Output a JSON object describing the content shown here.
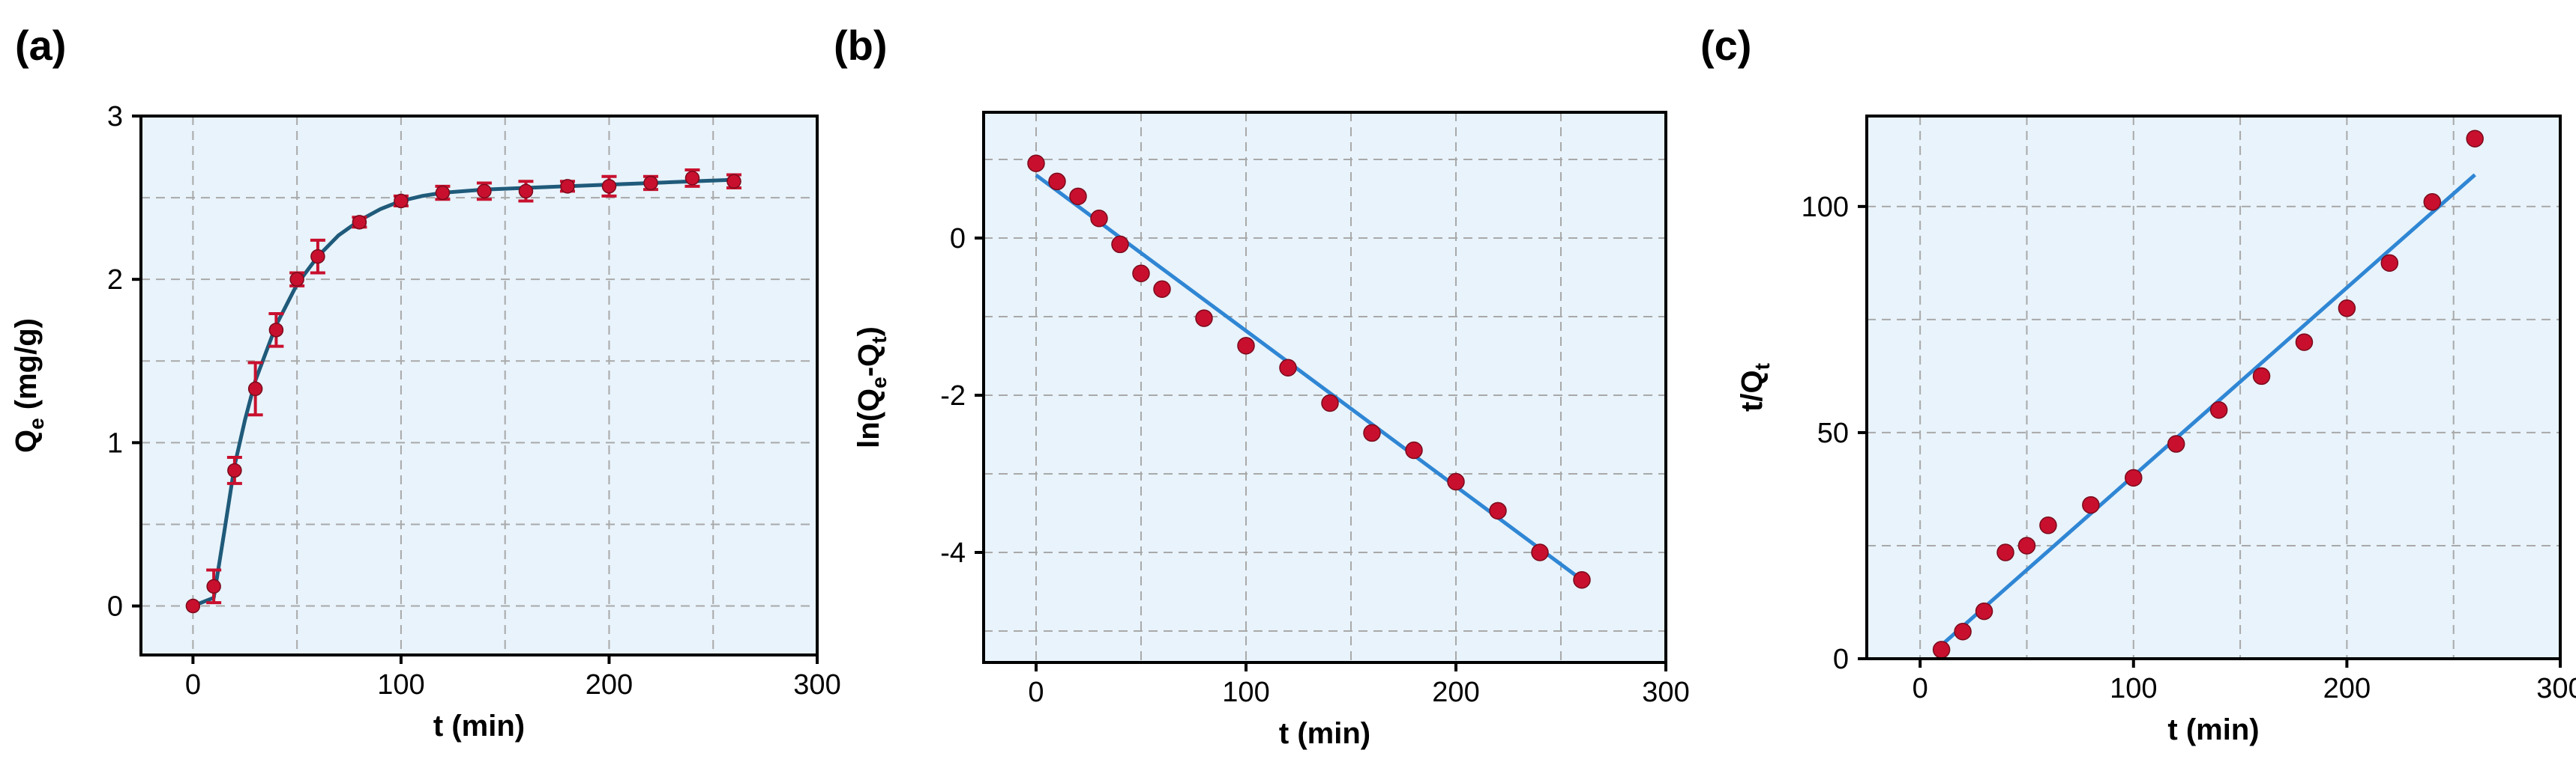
{
  "colors": {
    "panel_bg": "#e8f3fb",
    "frame": "#000000",
    "grid": "#a9a9a9",
    "marker": "#c8102e",
    "errorbar": "#c8102e",
    "curve": "#1f5a7a",
    "fit": "#2f86d4"
  },
  "chart_data": [
    {
      "panel_label": "(a)",
      "type": "scatter",
      "xlabel": "t (min)",
      "ylabel": "Q",
      "ylabel_sub": "e",
      "ylabel_tail": " (mg/g)",
      "xlim": [
        -25,
        300
      ],
      "ylim": [
        -0.3,
        3
      ],
      "xticks": [
        0,
        100,
        200,
        300
      ],
      "yticks": [
        0,
        1,
        2,
        3
      ],
      "grid": true,
      "series": [
        {
          "kind": "points",
          "x": [
            0,
            10,
            20,
            30,
            40,
            50,
            60,
            80,
            100,
            120,
            140,
            160,
            180,
            200,
            220,
            240,
            260
          ],
          "y": [
            0,
            0.12,
            0.83,
            1.33,
            1.69,
            2.0,
            2.14,
            2.35,
            2.48,
            2.53,
            2.54,
            2.54,
            2.57,
            2.57,
            2.59,
            2.62,
            2.6
          ],
          "err": [
            0,
            0.1,
            0.08,
            0.16,
            0.1,
            0.04,
            0.1,
            0.03,
            0.03,
            0.04,
            0.05,
            0.06,
            0.03,
            0.06,
            0.04,
            0.05,
            0.04
          ]
        },
        {
          "kind": "curve",
          "x": [
            0,
            10,
            15,
            20,
            25,
            30,
            40,
            50,
            60,
            70,
            80,
            90,
            100,
            110,
            120,
            140,
            160,
            180,
            200,
            220,
            240,
            260
          ],
          "y": [
            0,
            0.05,
            0.45,
            0.86,
            1.14,
            1.38,
            1.72,
            1.97,
            2.14,
            2.27,
            2.36,
            2.43,
            2.48,
            2.51,
            2.53,
            2.55,
            2.56,
            2.57,
            2.58,
            2.59,
            2.6,
            2.61
          ]
        }
      ]
    },
    {
      "panel_label": "(b)",
      "type": "scatter",
      "xlabel": "t (min)",
      "ylabel": "ln(Q",
      "ylabel_sub": "e",
      "ylabel_mid": "-Q",
      "ylabel_sub2": "t",
      "ylabel_tail": ")",
      "xlim": [
        -25,
        300
      ],
      "ylim": [
        -5.4,
        1.6
      ],
      "xticks": [
        0,
        100,
        200,
        300
      ],
      "yticks": [
        -4,
        -2,
        0
      ],
      "grid": true,
      "series": [
        {
          "kind": "points",
          "x": [
            0,
            10,
            20,
            30,
            40,
            50,
            60,
            80,
            100,
            120,
            140,
            160,
            180,
            200,
            220,
            240,
            260
          ],
          "y": [
            0.95,
            0.72,
            0.53,
            0.25,
            -0.08,
            -0.45,
            -0.65,
            -1.02,
            -1.37,
            -1.65,
            -2.1,
            -2.48,
            -2.7,
            -3.1,
            -3.47,
            -4.0,
            -4.35
          ]
        },
        {
          "kind": "line",
          "x": [
            0,
            260
          ],
          "y": [
            0.8,
            -4.35
          ]
        }
      ]
    },
    {
      "panel_label": "(c)",
      "type": "scatter",
      "xlabel": "t (min)",
      "ylabel": "t/Q",
      "ylabel_sub": "t",
      "ylabel_tail": "",
      "xlim": [
        -25,
        300
      ],
      "ylim": [
        0,
        120
      ],
      "xticks": [
        0,
        100,
        200,
        300
      ],
      "yticks": [
        0,
        50,
        100
      ],
      "grid": true,
      "series": [
        {
          "kind": "points",
          "x": [
            10,
            20,
            30,
            40,
            50,
            60,
            80,
            100,
            120,
            140,
            160,
            180,
            200,
            220,
            240,
            260
          ],
          "y": [
            2,
            6,
            10.5,
            23.5,
            25,
            29.5,
            34,
            40,
            47.5,
            55,
            62.5,
            70,
            77.5,
            87.5,
            101,
            115
          ]
        },
        {
          "kind": "line",
          "x": [
            10,
            260
          ],
          "y": [
            3,
            107
          ]
        }
      ]
    }
  ]
}
